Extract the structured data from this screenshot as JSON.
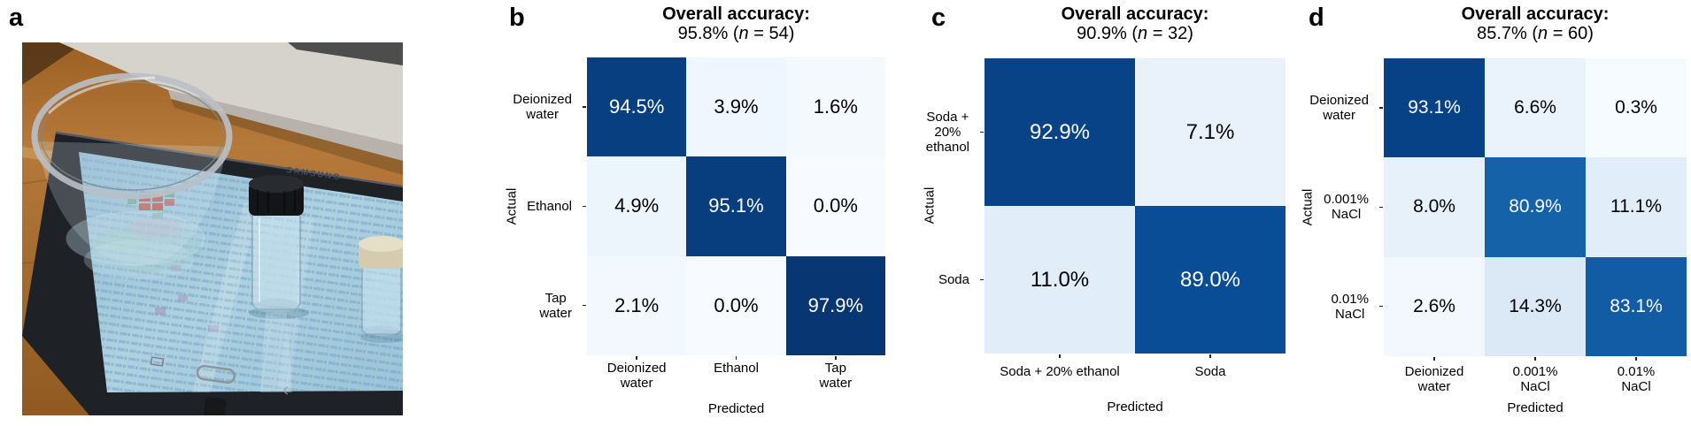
{
  "figure": {
    "background": "#ffffff"
  },
  "panel_a": {
    "letter": "a",
    "photo": {
      "brand": "SAMSUNG",
      "colors": {
        "wood": "#a06226",
        "laptop": "#d6d2cc",
        "tablet_frame": "#1e2126",
        "screen": "#a9cde0",
        "highlight_red": "#c05048",
        "highlight_green": "#64a489",
        "cap_black": "#141519",
        "cap_cream": "#d6cbaf"
      }
    }
  },
  "heatmap_colormap": {
    "name": "Blues",
    "stops": [
      "#f7fbff",
      "#deebf7",
      "#c6dbef",
      "#9ecae1",
      "#6baed6",
      "#4292c6",
      "#2171b5",
      "#08519c",
      "#08306b"
    ],
    "text_light": "#ffffff",
    "text_dark": "#000000",
    "white_text_threshold": 50
  },
  "chart_data": [
    {
      "id": "b",
      "letter": "b",
      "type": "heatmap",
      "title": "Overall accuracy:",
      "accuracy": "95.8%",
      "n": 54,
      "xlabel": "Predicted",
      "ylabel": "Actual",
      "x_categories": [
        [
          "Deionized",
          "water"
        ],
        [
          "Ethanol"
        ],
        [
          "Tap",
          "water"
        ]
      ],
      "y_categories": [
        [
          "Deionized",
          "water"
        ],
        [
          "Ethanol"
        ],
        [
          "Tap",
          "water"
        ]
      ],
      "values": [
        [
          94.5,
          3.9,
          1.6
        ],
        [
          4.9,
          95.1,
          0.0
        ],
        [
          2.1,
          0.0,
          97.9
        ]
      ],
      "value_range": [
        0,
        100
      ],
      "value_unit": "%"
    },
    {
      "id": "c",
      "letter": "c",
      "type": "heatmap",
      "title": "Overall accuracy:",
      "accuracy": "90.9%",
      "n": 32,
      "xlabel": "Predicted",
      "ylabel": "Actual",
      "x_categories": [
        [
          "Soda + 20% ethanol"
        ],
        [
          "Soda"
        ]
      ],
      "y_categories": [
        [
          "Soda +",
          "20%",
          "ethanol"
        ],
        [
          "Soda"
        ]
      ],
      "values": [
        [
          92.9,
          7.1
        ],
        [
          11.0,
          89.0
        ]
      ],
      "value_range": [
        0,
        100
      ],
      "value_unit": "%"
    },
    {
      "id": "d",
      "letter": "d",
      "type": "heatmap",
      "title": "Overall accuracy:",
      "accuracy": "85.7%",
      "n": 60,
      "xlabel": "Predicted",
      "ylabel": "Actual",
      "x_categories": [
        [
          "Deionized",
          "water"
        ],
        [
          "0.001%",
          "NaCl"
        ],
        [
          "0.01%",
          "NaCl"
        ]
      ],
      "y_categories": [
        [
          "Deionized",
          "water"
        ],
        [
          "0.001%",
          "NaCl"
        ],
        [
          "0.01%",
          "NaCl"
        ]
      ],
      "values": [
        [
          93.1,
          6.6,
          0.3
        ],
        [
          8.0,
          80.9,
          11.1
        ],
        [
          2.6,
          14.3,
          83.1
        ]
      ],
      "value_range": [
        0,
        100
      ],
      "value_unit": "%"
    }
  ]
}
